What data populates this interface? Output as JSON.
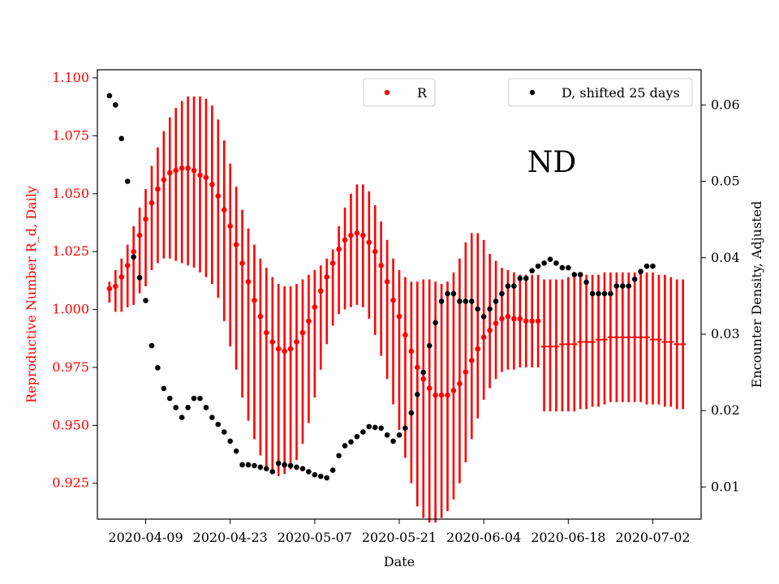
{
  "chart_data": {
    "type": "scatter",
    "annotation": "ND",
    "xlabel": "Date",
    "ylabel_left": "Reproductive Number R_d, Daily",
    "ylabel_right": "Encounter Density, Adjusted",
    "x_ticks": [
      "2020-04-09",
      "2020-04-23",
      "2020-05-07",
      "2020-05-21",
      "2020-06-04",
      "2020-06-18",
      "2020-07-02"
    ],
    "xlim": [
      "2020-04-01",
      "2020-07-10"
    ],
    "ylim_left": [
      0.9095,
      1.1035
    ],
    "yticks_left": [
      "0.925",
      "0.950",
      "0.975",
      "1.000",
      "1.025",
      "1.050",
      "1.075",
      "1.100"
    ],
    "ylim_right": [
      0.0058,
      0.0646
    ],
    "yticks_right": [
      "0.01",
      "0.02",
      "0.03",
      "0.04",
      "0.05",
      "0.06"
    ],
    "colors": {
      "R": "#ff0000",
      "D": "#000000",
      "left_axis": "#ff0000",
      "right_axis": "#000000"
    },
    "R": {
      "legend": "R",
      "start_date": "2020-04-03",
      "values": [
        1.009,
        1.01,
        1.014,
        1.019,
        1.025,
        1.032,
        1.039,
        1.046,
        1.052,
        1.056,
        1.059,
        1.06,
        1.061,
        1.061,
        1.06,
        1.058,
        1.057,
        1.054,
        1.049,
        1.043,
        1.036,
        1.028,
        1.02,
        1.012,
        1.004,
        0.997,
        0.99,
        0.986,
        0.983,
        0.982,
        0.983,
        0.986,
        0.99,
        0.995,
        1.001,
        1.008,
        1.014,
        1.02,
        1.026,
        1.03,
        1.032,
        1.033,
        1.032,
        1.029,
        1.025,
        1.019,
        1.012,
        1.004,
        0.997,
        0.989,
        0.982,
        0.975,
        0.97,
        0.966,
        0.963,
        0.963,
        0.963,
        0.965,
        0.968,
        0.973,
        0.978,
        0.983,
        0.988,
        0.991,
        0.994,
        0.996,
        0.997,
        0.996,
        0.996,
        0.995,
        0.995,
        0.995
      ],
      "lower": [
        1.003,
        0.999,
        0.999,
        1.001,
        1.002,
        1.007,
        1.01,
        1.017,
        1.02,
        1.022,
        1.022,
        1.021,
        1.02,
        1.019,
        1.018,
        1.016,
        1.014,
        1.011,
        1.005,
        0.995,
        0.984,
        0.974,
        0.962,
        0.952,
        0.944,
        0.937,
        0.932,
        0.929,
        0.928,
        0.929,
        0.931,
        0.935,
        0.942,
        0.951,
        0.962,
        0.974,
        0.985,
        0.993,
        0.998,
        1.0,
        1.001,
        1.002,
        1.001,
        0.996,
        0.989,
        0.98,
        0.97,
        0.959,
        0.948,
        0.936,
        0.925,
        0.915,
        0.91,
        0.908,
        0.908,
        0.91,
        0.913,
        0.918,
        0.925,
        0.934,
        0.944,
        0.953,
        0.961,
        0.966,
        0.97,
        0.973,
        0.974,
        0.974,
        0.975,
        0.975,
        0.975,
        0.975
      ],
      "upper": [
        1.012,
        1.017,
        1.022,
        1.028,
        1.036,
        1.044,
        1.052,
        1.062,
        1.07,
        1.077,
        1.083,
        1.087,
        1.09,
        1.092,
        1.092,
        1.092,
        1.091,
        1.088,
        1.082,
        1.073,
        1.063,
        1.053,
        1.043,
        1.035,
        1.028,
        1.022,
        1.018,
        1.014,
        1.011,
        1.01,
        1.01,
        1.011,
        1.013,
        1.015,
        1.017,
        1.019,
        1.022,
        1.026,
        1.036,
        1.044,
        1.05,
        1.054,
        1.054,
        1.051,
        1.045,
        1.038,
        1.03,
        1.022,
        1.017,
        1.014,
        1.012,
        1.012,
        1.013,
        1.013,
        1.012,
        1.011,
        1.012,
        1.016,
        1.022,
        1.029,
        1.033,
        1.033,
        1.03,
        1.024,
        1.021,
        1.018,
        1.017,
        1.016,
        1.015,
        1.015,
        1.015,
        1.015
      ],
      "tail_start_date": "2020-06-14",
      "tail_values": [
        0.984,
        0.984,
        0.984,
        0.985,
        0.985,
        0.985,
        0.986,
        0.986,
        0.986,
        0.987,
        0.987,
        0.988,
        0.988,
        0.988,
        0.988,
        0.988,
        0.988,
        0.988,
        0.987,
        0.987,
        0.986,
        0.986,
        0.985,
        0.985
      ],
      "tail_lower": [
        0.956,
        0.956,
        0.956,
        0.956,
        0.956,
        0.956,
        0.957,
        0.957,
        0.958,
        0.958,
        0.959,
        0.96,
        0.96,
        0.96,
        0.96,
        0.96,
        0.96,
        0.959,
        0.959,
        0.959,
        0.958,
        0.958,
        0.957,
        0.957
      ],
      "tail_upper": [
        1.013,
        1.013,
        1.013,
        1.013,
        1.014,
        1.014,
        1.014,
        1.015,
        1.015,
        1.015,
        1.016,
        1.016,
        1.016,
        1.016,
        1.016,
        1.016,
        1.016,
        1.016,
        1.016,
        1.015,
        1.015,
        1.014,
        1.013,
        1.013
      ]
    },
    "D": {
      "legend": "D, shifted 25 days",
      "start_date": "2020-04-03",
      "values": [
        0.0612,
        0.06,
        0.0556,
        0.05,
        0.0401,
        0.0374,
        0.0344,
        0.0285,
        0.0256,
        0.0229,
        0.0216,
        0.0204,
        0.0191,
        0.0204,
        0.0216,
        0.0216,
        0.0204,
        0.0191,
        0.0182,
        0.0172,
        0.016,
        0.0147,
        0.0129,
        0.0129,
        0.0128,
        0.0126,
        0.0124,
        0.012,
        0.0131,
        0.0129,
        0.0128,
        0.0126,
        0.0124,
        0.012,
        0.0116,
        0.0114,
        0.0112,
        0.0122,
        0.0141,
        0.0154,
        0.0159,
        0.0166,
        0.0172,
        0.0179,
        0.0178,
        0.0177,
        0.0168,
        0.016,
        0.0168,
        0.0177,
        0.0197,
        0.0221,
        0.025,
        0.0285,
        0.0315,
        0.0343,
        0.0353,
        0.0353,
        0.0343,
        0.0343,
        0.0343,
        0.0333,
        0.0323,
        0.0333,
        0.0343,
        0.0353,
        0.0363,
        0.0363,
        0.0373,
        0.0373,
        0.0383,
        0.0389,
        0.0393,
        0.0398,
        0.0393,
        0.0387,
        0.0387,
        0.0378,
        0.0378,
        0.0368,
        0.0353,
        0.0353,
        0.0353,
        0.0353,
        0.0363,
        0.0363,
        0.0363,
        0.0372,
        0.0382,
        0.0389,
        0.0389
      ]
    }
  }
}
